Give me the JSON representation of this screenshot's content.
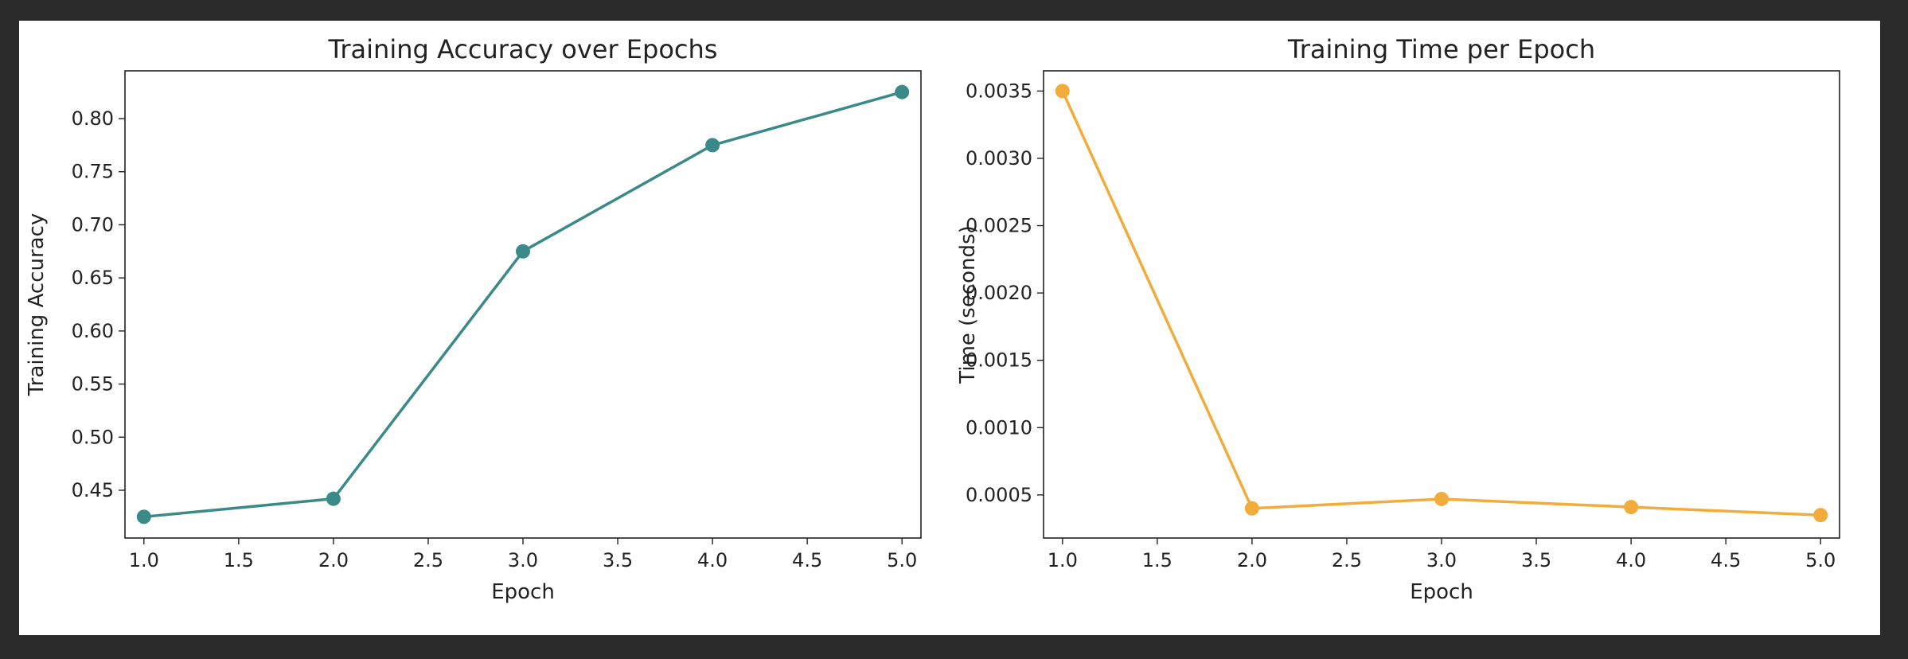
{
  "chart_data": [
    {
      "type": "line",
      "title": "Training Accuracy over Epochs",
      "xlabel": "Epoch",
      "ylabel": "Training Accuracy",
      "color": "#3a8a8a",
      "x": [
        1.0,
        2.0,
        3.0,
        4.0,
        5.0
      ],
      "y": [
        0.425,
        0.442,
        0.675,
        0.775,
        0.825
      ],
      "xlim": [
        0.9,
        5.1
      ],
      "ylim": [
        0.405,
        0.845
      ],
      "xticks": [
        1.0,
        1.5,
        2.0,
        2.5,
        3.0,
        3.5,
        4.0,
        4.5,
        5.0
      ],
      "xtick_labels": [
        "1.0",
        "1.5",
        "2.0",
        "2.5",
        "3.0",
        "3.5",
        "4.0",
        "4.5",
        "5.0"
      ],
      "yticks": [
        0.45,
        0.5,
        0.55,
        0.6,
        0.65,
        0.7,
        0.75,
        0.8
      ],
      "ytick_labels": [
        "0.45",
        "0.50",
        "0.55",
        "0.60",
        "0.65",
        "0.70",
        "0.75",
        "0.80"
      ],
      "grid": false,
      "marker": "circle"
    },
    {
      "type": "line",
      "title": "Training Time per Epoch",
      "xlabel": "Epoch",
      "ylabel": "Time (seconds)",
      "color": "#f2ac3c",
      "x": [
        1.0,
        2.0,
        3.0,
        4.0,
        5.0
      ],
      "y": [
        0.0035,
        0.0004,
        0.00047,
        0.00041,
        0.00035
      ],
      "xlim": [
        0.9,
        5.1
      ],
      "ylim": [
        0.00018,
        0.00365
      ],
      "xticks": [
        1.0,
        1.5,
        2.0,
        2.5,
        3.0,
        3.5,
        4.0,
        4.5,
        5.0
      ],
      "xtick_labels": [
        "1.0",
        "1.5",
        "2.0",
        "2.5",
        "3.0",
        "3.5",
        "4.0",
        "4.5",
        "5.0"
      ],
      "yticks": [
        0.0005,
        0.001,
        0.0015,
        0.002,
        0.0025,
        0.003,
        0.0035
      ],
      "ytick_labels": [
        "0.0005",
        "0.0010",
        "0.0015",
        "0.0020",
        "0.0025",
        "0.0030",
        "0.0035"
      ],
      "grid": false,
      "marker": "circle"
    }
  ]
}
